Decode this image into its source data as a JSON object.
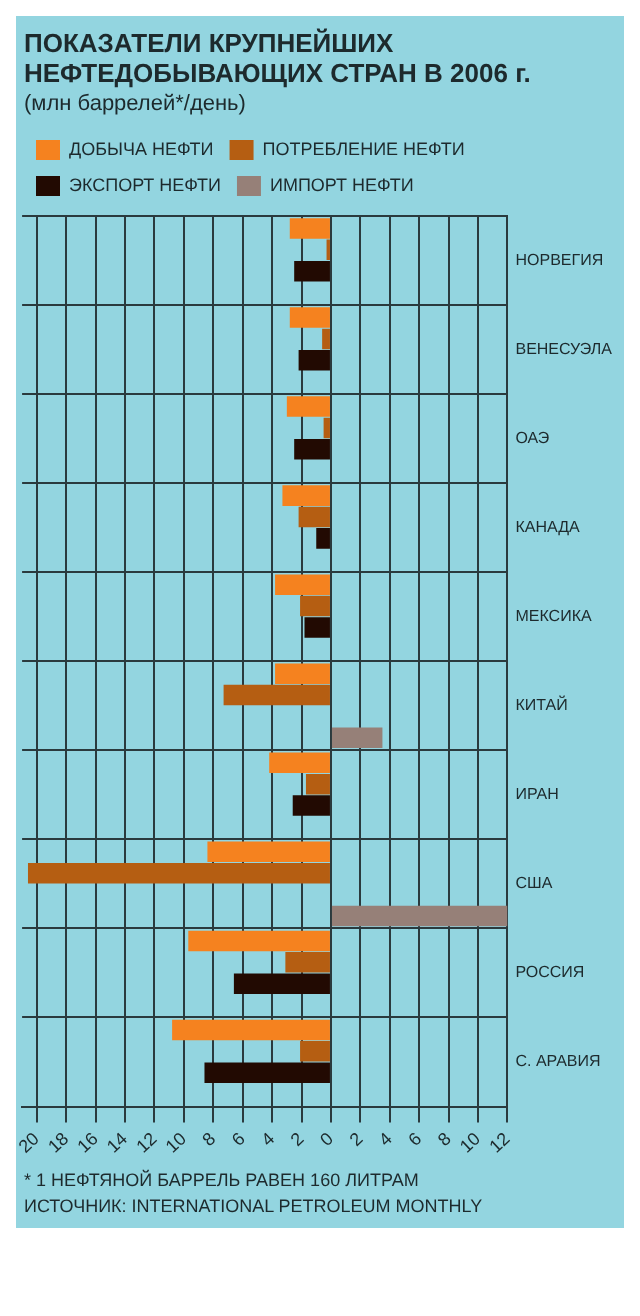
{
  "chart_data": {
    "type": "bar",
    "orientation": "horizontal",
    "title": "ПОКАЗАТЕЛИ КРУПНЕЙШИХ НЕФТЕДОБЫВАЮЩИХ СТРАН В 2006 г.",
    "subtitle": "(млн баррелей*/день)",
    "categories": [
      "НОРВЕГИЯ",
      "ВЕНЕСУЭЛА",
      "ОАЭ",
      "КАНАДА",
      "МЕКСИКА",
      "КИТАЙ",
      "ИРАН",
      "США",
      "РОССИЯ",
      "С. АРАВИЯ"
    ],
    "series": [
      {
        "name": "ДОБЫЧА НЕФТИ",
        "color": "#f5821f",
        "values": [
          2.8,
          2.8,
          3.0,
          3.3,
          3.8,
          3.8,
          4.2,
          8.4,
          9.7,
          10.8
        ]
      },
      {
        "name": "ПОТРЕБЛЕНИЕ НЕФТИ",
        "color": "#b55e12",
        "values": [
          0.3,
          0.6,
          0.5,
          2.2,
          2.1,
          7.3,
          1.7,
          20.6,
          3.1,
          2.1
        ]
      },
      {
        "name": "ЭКСПОРТ НЕФТИ",
        "color": "#220a02",
        "values": [
          2.5,
          2.2,
          2.5,
          1.0,
          1.8,
          null,
          2.6,
          null,
          6.6,
          8.6
        ]
      },
      {
        "name": "ИМПОРТ НЕФТИ",
        "color": "#968078",
        "values": [
          null,
          null,
          null,
          null,
          null,
          -3.5,
          null,
          -12,
          null,
          null
        ]
      }
    ],
    "xlim": [
      21,
      -12
    ],
    "xticks": [
      20,
      18,
      16,
      14,
      12,
      10,
      8,
      6,
      4,
      2,
      0,
      {
        "value": -2,
        "label": "2"
      },
      {
        "value": -4,
        "label": "4"
      },
      {
        "value": -6,
        "label": "6"
      },
      {
        "value": -8,
        "label": "8"
      },
      {
        "value": -10,
        "label": "10"
      },
      {
        "value": -12,
        "label": "12"
      }
    ],
    "grid": true,
    "legend": "top",
    "annotations": [
      "* 1 НЕФТЯНОЙ БАРРЕЛЬ РАВЕН 160 ЛИТРАМ",
      "ИСТОЧНИК: INTERNATIONAL PETROLEUM MONTHLY"
    ]
  }
}
